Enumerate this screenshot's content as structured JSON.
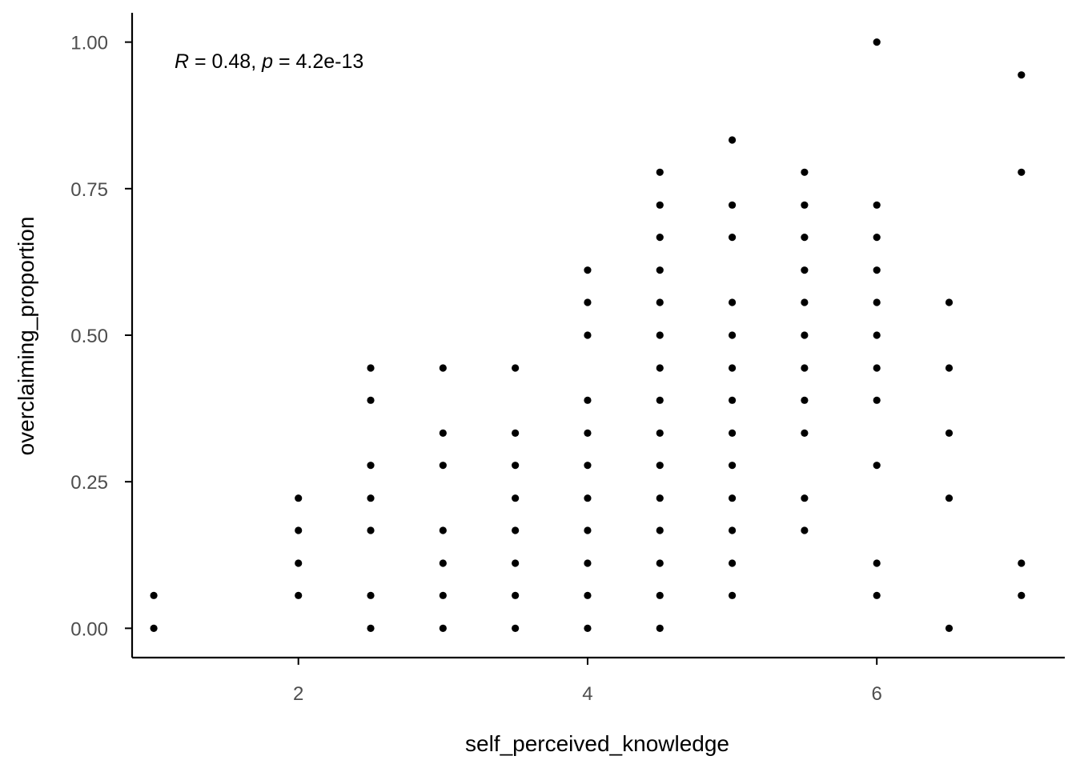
{
  "chart_data": {
    "type": "scatter",
    "xlabel": "self_perceived_knowledge",
    "ylabel": "overclaiming_proportion",
    "xlim": [
      0.85,
      7.3
    ],
    "ylim": [
      -0.05,
      1.05
    ],
    "x_ticks": [
      2,
      4,
      6
    ],
    "x_tick_labels": [
      "2",
      "4",
      "6"
    ],
    "y_ticks": [
      0,
      0.25,
      0.5,
      0.75,
      1
    ],
    "y_tick_labels": [
      "0.00",
      "0.25",
      "0.50",
      "0.75",
      "1.00"
    ],
    "grid": false,
    "annotation": {
      "r_symbol": "R",
      "r_text": " = 0.48, ",
      "p_symbol": "p",
      "p_text": " = 4.2e-13"
    },
    "point_color": "#000000",
    "points": [
      [
        1,
        0
      ],
      [
        1,
        0.056
      ],
      [
        2,
        0.056
      ],
      [
        2,
        0.111
      ],
      [
        2,
        0.167
      ],
      [
        2,
        0.222
      ],
      [
        2.5,
        0
      ],
      [
        2.5,
        0.056
      ],
      [
        2.5,
        0.167
      ],
      [
        2.5,
        0.222
      ],
      [
        2.5,
        0.278
      ],
      [
        2.5,
        0.389
      ],
      [
        2.5,
        0.444
      ],
      [
        3,
        0
      ],
      [
        3,
        0.056
      ],
      [
        3,
        0.111
      ],
      [
        3,
        0.167
      ],
      [
        3,
        0.278
      ],
      [
        3,
        0.333
      ],
      [
        3,
        0.444
      ],
      [
        3.5,
        0
      ],
      [
        3.5,
        0.056
      ],
      [
        3.5,
        0.111
      ],
      [
        3.5,
        0.167
      ],
      [
        3.5,
        0.222
      ],
      [
        3.5,
        0.278
      ],
      [
        3.5,
        0.333
      ],
      [
        3.5,
        0.444
      ],
      [
        4,
        0
      ],
      [
        4,
        0.056
      ],
      [
        4,
        0.111
      ],
      [
        4,
        0.167
      ],
      [
        4,
        0.222
      ],
      [
        4,
        0.278
      ],
      [
        4,
        0.333
      ],
      [
        4,
        0.389
      ],
      [
        4,
        0.5
      ],
      [
        4,
        0.556
      ],
      [
        4,
        0.611
      ],
      [
        4.5,
        0
      ],
      [
        4.5,
        0.056
      ],
      [
        4.5,
        0.111
      ],
      [
        4.5,
        0.167
      ],
      [
        4.5,
        0.222
      ],
      [
        4.5,
        0.278
      ],
      [
        4.5,
        0.333
      ],
      [
        4.5,
        0.389
      ],
      [
        4.5,
        0.444
      ],
      [
        4.5,
        0.5
      ],
      [
        4.5,
        0.556
      ],
      [
        4.5,
        0.611
      ],
      [
        4.5,
        0.667
      ],
      [
        4.5,
        0.722
      ],
      [
        4.5,
        0.778
      ],
      [
        5,
        0.056
      ],
      [
        5,
        0.111
      ],
      [
        5,
        0.167
      ],
      [
        5,
        0.222
      ],
      [
        5,
        0.278
      ],
      [
        5,
        0.333
      ],
      [
        5,
        0.389
      ],
      [
        5,
        0.444
      ],
      [
        5,
        0.5
      ],
      [
        5,
        0.556
      ],
      [
        5,
        0.667
      ],
      [
        5,
        0.722
      ],
      [
        5,
        0.833
      ],
      [
        5.5,
        0.167
      ],
      [
        5.5,
        0.222
      ],
      [
        5.5,
        0.333
      ],
      [
        5.5,
        0.389
      ],
      [
        5.5,
        0.444
      ],
      [
        5.5,
        0.5
      ],
      [
        5.5,
        0.556
      ],
      [
        5.5,
        0.611
      ],
      [
        5.5,
        0.667
      ],
      [
        5.5,
        0.722
      ],
      [
        5.5,
        0.778
      ],
      [
        6,
        0.056
      ],
      [
        6,
        0.111
      ],
      [
        6,
        0.278
      ],
      [
        6,
        0.389
      ],
      [
        6,
        0.444
      ],
      [
        6,
        0.5
      ],
      [
        6,
        0.556
      ],
      [
        6,
        0.611
      ],
      [
        6,
        0.667
      ],
      [
        6,
        0.722
      ],
      [
        6,
        1.0
      ],
      [
        6.5,
        0
      ],
      [
        6.5,
        0.222
      ],
      [
        6.5,
        0.333
      ],
      [
        6.5,
        0.444
      ],
      [
        6.5,
        0.556
      ],
      [
        7,
        0.056
      ],
      [
        7,
        0.111
      ],
      [
        7,
        0.778
      ],
      [
        7,
        0.944
      ]
    ]
  }
}
